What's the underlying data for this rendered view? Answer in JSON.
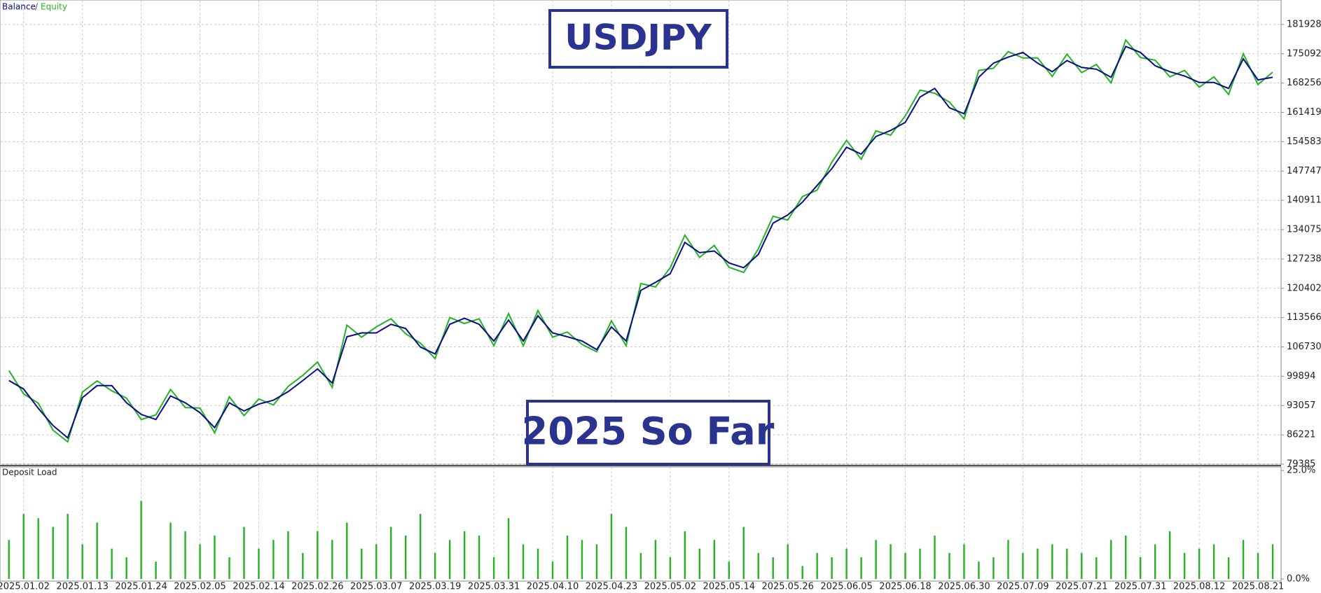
{
  "chart_data": [
    {
      "type": "line",
      "legend_separator": "/",
      "annotations": [
        "USDJPY",
        "2025 So Far"
      ],
      "categories": [
        null,
        "2025.01.02",
        null,
        null,
        null,
        "2025.01.13",
        null,
        null,
        null,
        "2025.01.24",
        null,
        null,
        null,
        "2025.02.05",
        null,
        null,
        null,
        "2025.02.14",
        null,
        null,
        null,
        "2025.02.26",
        null,
        null,
        null,
        "2025.03.07",
        null,
        null,
        null,
        "2025.03.19",
        null,
        null,
        null,
        "2025.03.31",
        null,
        null,
        null,
        "2025.04.10",
        null,
        null,
        null,
        "2025.04.23",
        null,
        null,
        null,
        "2025.05.02",
        null,
        null,
        null,
        "2025.05.14",
        null,
        null,
        null,
        "2025.05.26",
        null,
        null,
        null,
        "2025.06.05",
        null,
        null,
        null,
        "2025.06.18",
        null,
        null,
        null,
        "2025.06.30",
        null,
        null,
        null,
        "2025.07.09",
        null,
        null,
        null,
        "2025.07.21",
        null,
        null,
        null,
        "2025.07.31",
        null,
        null,
        null,
        "2025.08.12",
        null,
        null,
        null,
        "2025.08.21",
        null
      ],
      "series": [
        {
          "name": "Balance",
          "color": "#0a0a8c",
          "values": [
            98900,
            96900,
            92400,
            88400,
            85500,
            94900,
            97700,
            97700,
            93700,
            91000,
            89800,
            95300,
            93700,
            91400,
            87900,
            93700,
            91800,
            93400,
            94300,
            96300,
            98900,
            101600,
            98300,
            109100,
            110000,
            110000,
            112000,
            111000,
            106700,
            105100,
            112000,
            113400,
            112000,
            108100,
            113000,
            108100,
            114000,
            110000,
            109100,
            108100,
            106100,
            111400,
            108100,
            119900,
            121800,
            123800,
            131100,
            128700,
            129100,
            126300,
            125200,
            128300,
            135600,
            137500,
            140500,
            144400,
            148300,
            153300,
            151700,
            155800,
            157200,
            159100,
            165000,
            167000,
            162500,
            161100,
            169600,
            172900,
            174300,
            175400,
            172900,
            170900,
            173500,
            171900,
            171500,
            169600,
            176800,
            175400,
            172300,
            170900,
            169900,
            168400,
            168400,
            167000,
            173900,
            169000,
            169600
          ]
        },
        {
          "name": "Equity",
          "color": "#22b422",
          "values": [
            101200,
            95800,
            93600,
            87300,
            84600,
            96200,
            98800,
            96500,
            94800,
            89800,
            90900,
            96800,
            92600,
            92500,
            86700,
            95100,
            90700,
            94600,
            93200,
            97500,
            100100,
            103200,
            97300,
            111800,
            109000,
            111400,
            113300,
            109800,
            107600,
            104000,
            113600,
            112200,
            113300,
            107000,
            114500,
            107000,
            115200,
            109000,
            110200,
            107300,
            105600,
            112800,
            107000,
            121500,
            120700,
            125200,
            132800,
            127600,
            130400,
            125300,
            124100,
            129600,
            137200,
            136300,
            141800,
            143300,
            149800,
            154900,
            150500,
            157100,
            156100,
            160600,
            166600,
            165900,
            163800,
            159900,
            171200,
            171700,
            175600,
            174100,
            174100,
            169800,
            175000,
            170700,
            172600,
            168300,
            178300,
            174200,
            173600,
            169700,
            171200,
            167300,
            169700,
            165600,
            175100,
            167900,
            170800
          ]
        }
      ],
      "ylim": [
        79385,
        187625
      ],
      "yticks": [
        79385,
        86221,
        93057,
        99894,
        106730,
        113566,
        120402,
        127238,
        134075,
        140911,
        147747,
        154583,
        161419,
        168256,
        175092,
        181928
      ],
      "grid": true
    },
    {
      "type": "bar",
      "title": "Deposit Load",
      "color": "#22b422",
      "values": [
        9,
        15,
        14,
        12,
        15,
        8,
        13,
        7,
        5,
        18,
        4,
        13,
        11,
        8,
        10,
        5,
        12,
        7,
        9,
        11,
        6,
        11,
        9,
        13,
        7,
        8,
        12,
        10,
        15,
        6,
        9,
        11,
        10,
        5,
        14,
        8,
        7,
        4,
        10,
        9,
        8,
        15,
        12,
        6,
        9,
        5,
        11,
        7,
        9,
        4,
        12,
        6,
        5,
        8,
        3,
        6,
        5,
        7,
        5,
        9,
        8,
        6,
        7,
        10,
        6,
        8,
        4,
        5,
        9,
        6,
        7,
        8,
        7,
        6,
        5,
        9,
        10,
        5,
        8,
        11,
        6,
        7,
        8,
        5,
        9,
        6,
        8
      ],
      "ylim": [
        0,
        25
      ],
      "yticks": [
        {
          "value": 0,
          "label": "0.0%"
        },
        {
          "value": 25,
          "label": "25.0%"
        }
      ]
    }
  ]
}
